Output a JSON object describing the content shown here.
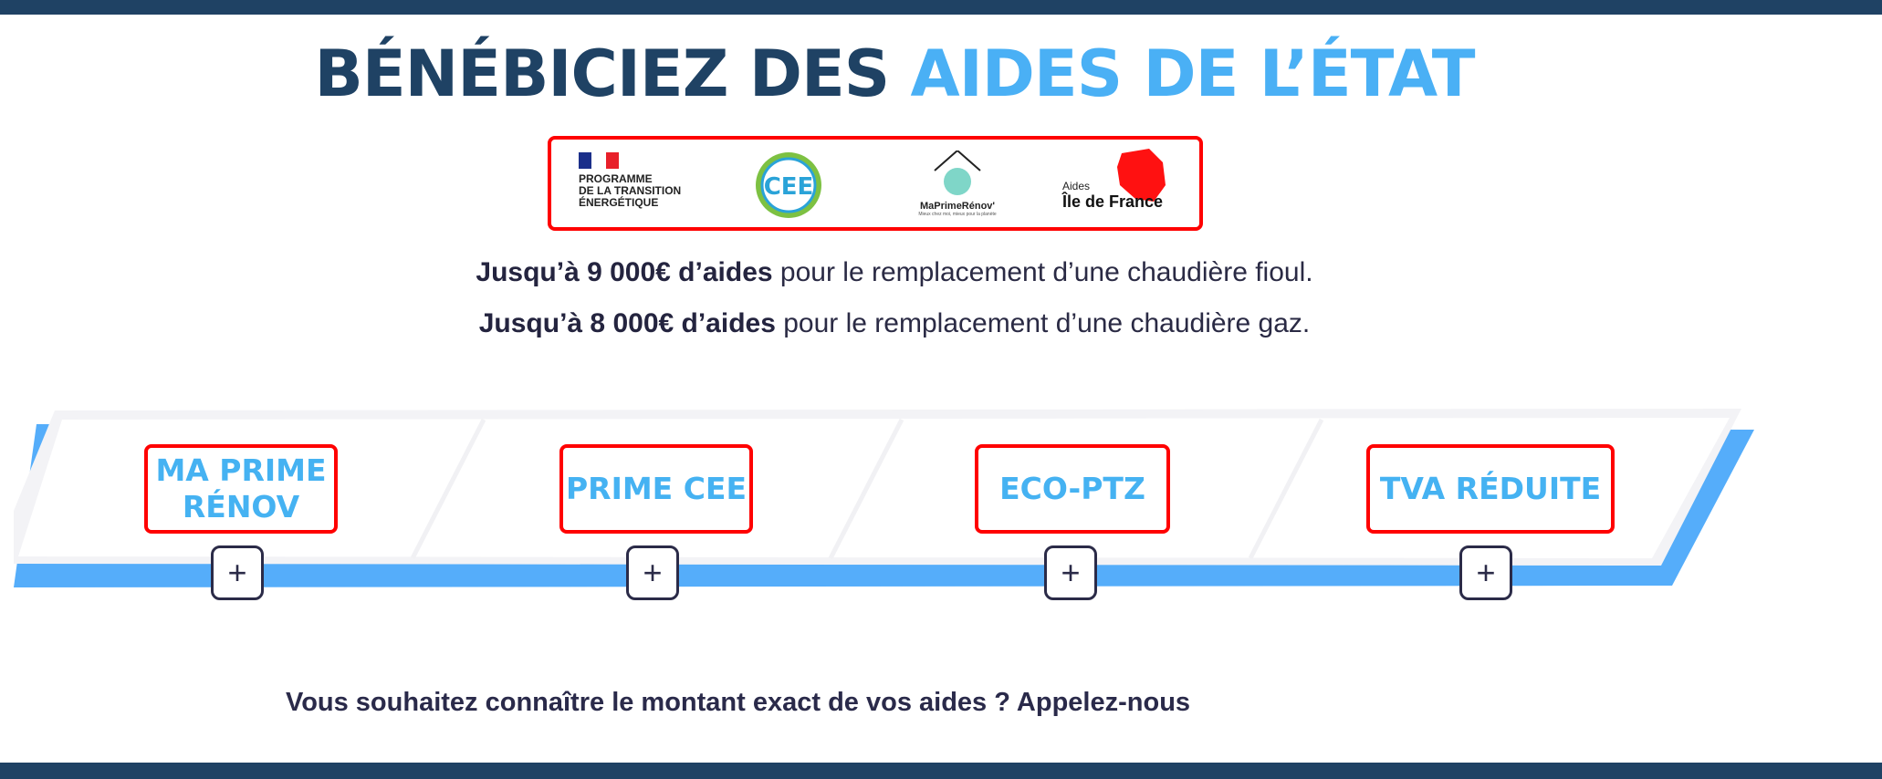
{
  "header": {
    "title_part1": "BÉNÉBICIEZ DES ",
    "title_part2": "AIDES DE L’ÉTAT"
  },
  "logos": [
    {
      "name": "programme-transition-energetique-logo",
      "text": "PROGRAMME\nDE LA TRANSITION\nÉNERGÉTIQUE"
    },
    {
      "name": "cee-logo",
      "text": "CEE"
    },
    {
      "name": "maprimerenov-logo",
      "text": "MaPrimeRénov'",
      "subtext": "Mieux chez moi, mieux pour la planète"
    },
    {
      "name": "aides-ile-de-france-logo",
      "text_small": "Aides",
      "text": "Île de France"
    }
  ],
  "intro": {
    "line1_bold": "Jusqu’à 9 000€ d’aides",
    "line1_rest": " pour le remplacement d’une chaudière fioul.",
    "line2_bold": "Jusqu’à 8 000€ d’aides",
    "line2_rest": " pour le remplacement d’une chaudière gaz."
  },
  "aids": [
    {
      "label": "MA PRIME RÉNOV",
      "expand": "+"
    },
    {
      "label": "PRIME CEE",
      "expand": "+"
    },
    {
      "label": "ECO-PTZ",
      "expand": "+"
    },
    {
      "label": "TVA RÉDUITE",
      "expand": "+"
    }
  ],
  "cta": "Vous souhaitez connaître le montant exact de vos aides ? Appelez-nous",
  "colors": {
    "navy": "#1f4264",
    "accent": "#4ab0f5",
    "ribbon_blue": "#55adfa",
    "highlight": "#ff0000"
  }
}
